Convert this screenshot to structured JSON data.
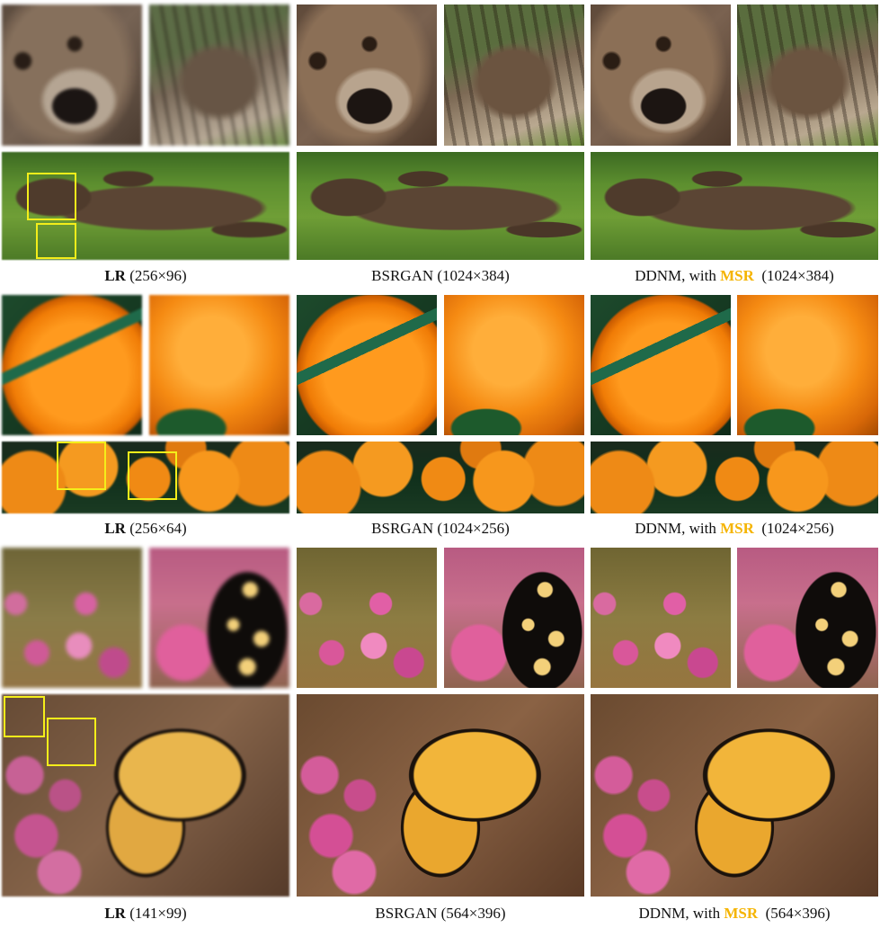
{
  "figure": {
    "rows": [
      {
        "subject": "bear",
        "captions": [
          {
            "method": "LR",
            "size": "(256×96)"
          },
          {
            "method": "BSRGAN",
            "size": "(1024×384)"
          },
          {
            "method": "DDNM, with",
            "highlight": "MSR",
            "size": "(1024×384)"
          }
        ]
      },
      {
        "subject": "orange",
        "captions": [
          {
            "method": "LR",
            "size": "(256×64)"
          },
          {
            "method": "BSRGAN",
            "size": "(1024×256)"
          },
          {
            "method": "DDNM, with",
            "highlight": "MSR",
            "size": "(1024×256)"
          }
        ]
      },
      {
        "subject": "butterfly",
        "captions": [
          {
            "method": "LR",
            "size": "(141×99)"
          },
          {
            "method": "BSRGAN",
            "size": "(564×396)"
          },
          {
            "method": "DDNM, with",
            "highlight": "MSR",
            "size": "(564×396)"
          }
        ]
      }
    ],
    "colors": {
      "highlight": "#f5b400",
      "zoom_box": "#f4ee1a"
    }
  }
}
